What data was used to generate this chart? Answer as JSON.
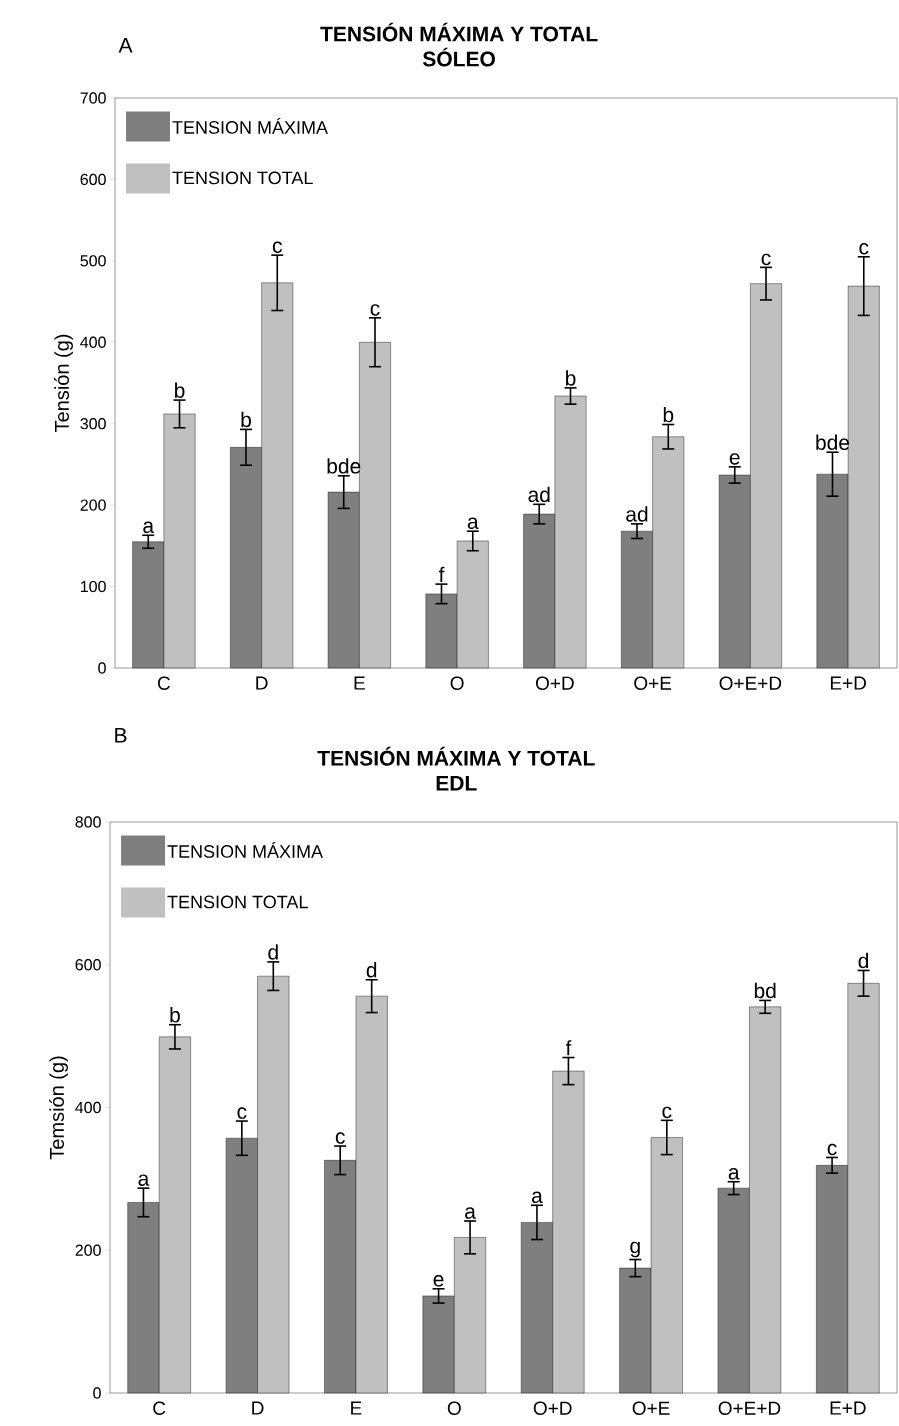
{
  "chart_data": [
    {
      "type": "bar",
      "title": "TENSIÓN MÁXIMA Y TOTAL",
      "subtitle": "SÓLEO",
      "ylabel": "Tensión (g)",
      "annotations": [
        "A"
      ],
      "legend": "top left",
      "categories": [
        "C",
        "D",
        "E",
        "O",
        "O+D",
        "O+E",
        "O+E+D",
        "E+D"
      ],
      "ylim": [
        0,
        700
      ],
      "yticks": [
        0,
        100,
        200,
        300,
        400,
        500,
        600,
        700
      ],
      "series": [
        {
          "name": "TENSION MÁXIMA",
          "color": "#7f7f7f",
          "values": [
            155,
            271,
            216,
            91,
            189,
            168,
            237,
            238
          ],
          "errors": [
            8,
            22,
            20,
            12,
            12,
            9,
            10,
            27
          ],
          "value_labels": [
            "a",
            "b",
            "bde",
            "f",
            "ad",
            "ad",
            "e",
            "bde"
          ]
        },
        {
          "name": "TENSION TOTAL",
          "color": "#c0c0c0",
          "values": [
            312,
            473,
            400,
            156,
            334,
            284,
            472,
            469
          ],
          "errors": [
            17,
            34,
            30,
            12,
            10,
            15,
            20,
            36
          ],
          "value_labels": [
            "b",
            "c",
            "c",
            "a",
            "b",
            "b",
            "c",
            "c"
          ]
        }
      ]
    },
    {
      "type": "bar",
      "title": "TENSIÓN MÁXIMA Y TOTAL",
      "subtitle": "EDL",
      "ylabel": "Temsión (g)",
      "annotations": [
        "B"
      ],
      "legend": "top left",
      "categories": [
        "C",
        "D",
        "E",
        "O",
        "O+D",
        "O+E",
        "O+E+D",
        "E+D"
      ],
      "ylim": [
        0,
        800
      ],
      "yticks": [
        0,
        200,
        400,
        600,
        800
      ],
      "series": [
        {
          "name": "TENSION MÁXIMA",
          "color": "#7f7f7f",
          "values": [
            267,
            357,
            326,
            136,
            239,
            175,
            287,
            319
          ],
          "errors": [
            20,
            24,
            20,
            10,
            24,
            12,
            9,
            11
          ],
          "value_labels": [
            "a",
            "c",
            "c",
            "e",
            "a",
            "g",
            "a",
            "c"
          ]
        },
        {
          "name": "TENSION TOTAL",
          "color": "#c0c0c0",
          "values": [
            499,
            584,
            556,
            218,
            451,
            358,
            541,
            574
          ],
          "errors": [
            17,
            20,
            23,
            23,
            19,
            24,
            9,
            18
          ],
          "value_labels": [
            "b",
            "d",
            "d",
            "a",
            "f",
            "c",
            "bd",
            "d"
          ]
        }
      ]
    }
  ]
}
